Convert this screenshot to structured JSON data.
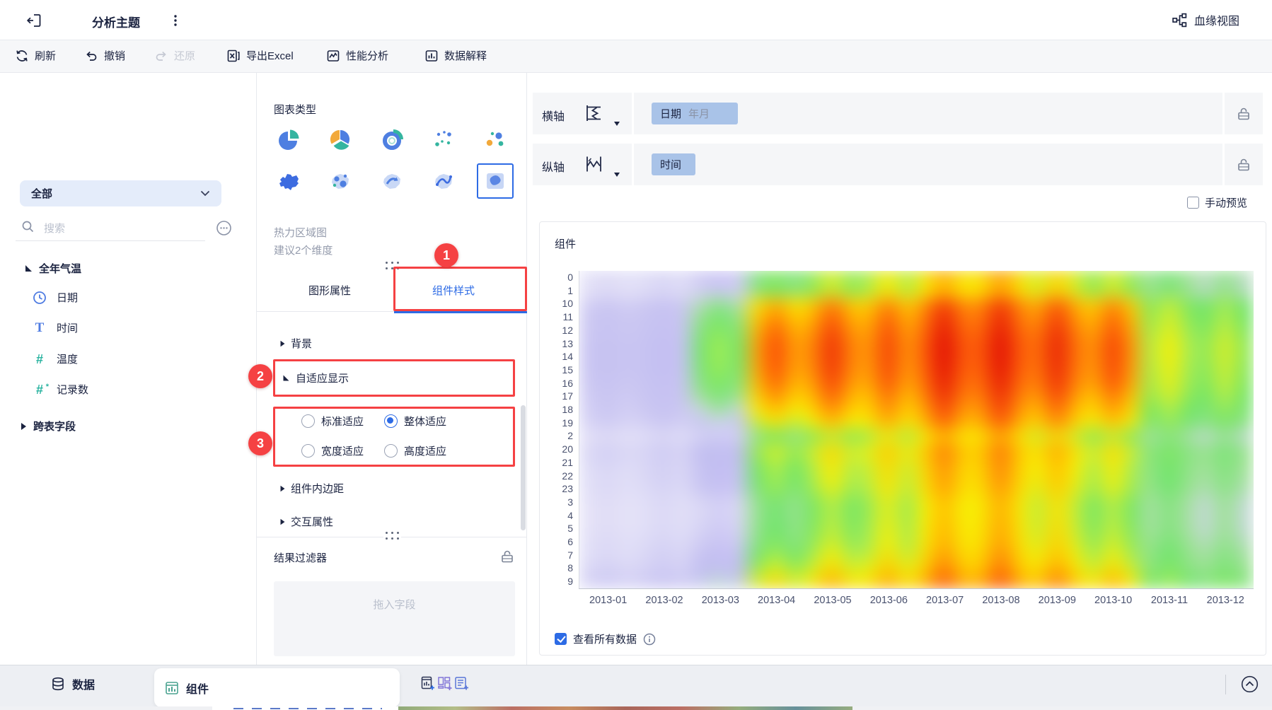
{
  "topbar": {
    "title": "分析主题",
    "lineage_label": "血缘视图"
  },
  "toolbar": {
    "refresh_label": "刷新",
    "undo_label": "撤销",
    "redo_label": "还原",
    "export_label": "导出Excel",
    "perf_label": "性能分析",
    "explain_label": "数据解释"
  },
  "sidebar": {
    "scope_label": "全部",
    "search_placeholder": "搜索",
    "dataset_label": "全年气温",
    "fields": [
      "日期",
      "时间",
      "温度",
      "记录数"
    ],
    "cross_table_label": "跨表字段"
  },
  "chart_panel": {
    "title": "图表类型",
    "chart_name": "热力区域图",
    "chart_hint": "建议2个维度",
    "tabs": {
      "graphic": "图形属性",
      "style": "组件样式"
    },
    "sections": {
      "background": "背景",
      "adaptive": "自适应显示",
      "padding": "组件内边距",
      "interaction": "交互属性"
    },
    "adaptive_options": [
      {
        "label": "标准适应",
        "selected": false
      },
      {
        "label": "整体适应",
        "selected": true
      },
      {
        "label": "宽度适应",
        "selected": false
      },
      {
        "label": "高度适应",
        "selected": false
      }
    ],
    "filter_title": "结果过滤器",
    "drop_hint": "拖入字段"
  },
  "axes": {
    "x_label": "横轴",
    "x_field": "日期",
    "x_field_sub": "年月",
    "y_label": "纵轴",
    "y_field": "时间"
  },
  "preview": {
    "manual_label": "手动预览",
    "card_title": "组件",
    "view_all_label": "查看所有数据"
  },
  "bottombar": {
    "data_label": "数据",
    "component_label": "组件"
  },
  "annotations": [
    "1",
    "2",
    "3"
  ],
  "colors": {
    "accent_blue": "#2d6be5",
    "annotation_red": "#f54143",
    "field_pill": "#a9c3e8",
    "teal": "#2ab3a0"
  },
  "chart_data": {
    "type": "heatmap",
    "title": "组件",
    "x": [
      "2013-01",
      "2013-02",
      "2013-03",
      "2013-04",
      "2013-05",
      "2013-06",
      "2013-07",
      "2013-08",
      "2013-09",
      "2013-10",
      "2013-11",
      "2013-12"
    ],
    "y": [
      "0",
      "1",
      "10",
      "11",
      "12",
      "13",
      "14",
      "15",
      "16",
      "17",
      "18",
      "19",
      "2",
      "20",
      "21",
      "22",
      "23",
      "3",
      "4",
      "5",
      "6",
      "7",
      "8",
      "9"
    ],
    "value_domain": [
      0,
      1
    ],
    "color_stops": [
      [
        0.0,
        "#ffffff"
      ],
      [
        0.08,
        "#e7e5f8"
      ],
      [
        0.15,
        "#cac6f2"
      ],
      [
        0.24,
        "#bebaf0"
      ],
      [
        0.31,
        "#d0d5ee"
      ],
      [
        0.37,
        "#a0e296"
      ],
      [
        0.46,
        "#6ee469"
      ],
      [
        0.54,
        "#b4ee4b"
      ],
      [
        0.62,
        "#f8ee05"
      ],
      [
        0.71,
        "#ffc400"
      ],
      [
        0.79,
        "#ff8a08"
      ],
      [
        0.88,
        "#fa4b0a"
      ],
      [
        1.0,
        "#e21005"
      ]
    ],
    "values": [
      [
        0.11,
        0.12,
        0.17,
        0.49,
        0.59,
        0.63,
        0.75,
        0.77,
        0.68,
        0.59,
        0.44,
        0.4
      ],
      [
        0.1,
        0.11,
        0.15,
        0.47,
        0.57,
        0.62,
        0.73,
        0.75,
        0.67,
        0.57,
        0.43,
        0.39
      ],
      [
        0.15,
        0.17,
        0.4,
        0.74,
        0.81,
        0.8,
        0.91,
        0.92,
        0.86,
        0.79,
        0.56,
        0.52
      ],
      [
        0.17,
        0.18,
        0.45,
        0.8,
        0.86,
        0.85,
        0.95,
        0.95,
        0.9,
        0.84,
        0.58,
        0.54
      ],
      [
        0.17,
        0.19,
        0.49,
        0.85,
        0.9,
        0.88,
        0.98,
        0.98,
        0.94,
        0.87,
        0.6,
        0.56
      ],
      [
        0.18,
        0.2,
        0.52,
        0.88,
        0.93,
        0.9,
        1.0,
        1.0,
        0.96,
        0.9,
        0.62,
        0.58
      ],
      [
        0.18,
        0.2,
        0.52,
        0.88,
        0.93,
        0.9,
        1.0,
        1.0,
        0.96,
        0.9,
        0.62,
        0.58
      ],
      [
        0.18,
        0.2,
        0.51,
        0.87,
        0.92,
        0.89,
        0.99,
        0.99,
        0.95,
        0.89,
        0.61,
        0.57
      ],
      [
        0.17,
        0.19,
        0.48,
        0.84,
        0.89,
        0.87,
        0.97,
        0.97,
        0.93,
        0.87,
        0.6,
        0.56
      ],
      [
        0.16,
        0.18,
        0.43,
        0.79,
        0.85,
        0.83,
        0.94,
        0.94,
        0.89,
        0.82,
        0.58,
        0.54
      ],
      [
        0.15,
        0.17,
        0.37,
        0.72,
        0.79,
        0.79,
        0.89,
        0.9,
        0.84,
        0.77,
        0.54,
        0.5
      ],
      [
        0.14,
        0.15,
        0.31,
        0.64,
        0.72,
        0.74,
        0.85,
        0.86,
        0.79,
        0.71,
        0.51,
        0.47
      ],
      [
        0.1,
        0.11,
        0.14,
        0.46,
        0.56,
        0.61,
        0.73,
        0.75,
        0.66,
        0.56,
        0.42,
        0.38
      ],
      [
        0.13,
        0.14,
        0.26,
        0.59,
        0.67,
        0.7,
        0.81,
        0.82,
        0.75,
        0.66,
        0.48,
        0.44
      ],
      [
        0.12,
        0.13,
        0.22,
        0.55,
        0.64,
        0.67,
        0.79,
        0.8,
        0.72,
        0.63,
        0.47,
        0.43
      ],
      [
        0.11,
        0.13,
        0.2,
        0.53,
        0.62,
        0.65,
        0.77,
        0.79,
        0.71,
        0.61,
        0.46,
        0.42
      ],
      [
        0.11,
        0.12,
        0.18,
        0.51,
        0.6,
        0.64,
        0.76,
        0.77,
        0.69,
        0.6,
        0.45,
        0.41
      ],
      [
        0.1,
        0.11,
        0.13,
        0.45,
        0.55,
        0.6,
        0.72,
        0.74,
        0.65,
        0.55,
        0.42,
        0.38
      ],
      [
        0.1,
        0.11,
        0.13,
        0.45,
        0.55,
        0.6,
        0.72,
        0.74,
        0.65,
        0.55,
        0.42,
        0.38
      ],
      [
        0.1,
        0.11,
        0.14,
        0.46,
        0.56,
        0.61,
        0.73,
        0.75,
        0.66,
        0.56,
        0.42,
        0.38
      ],
      [
        0.11,
        0.12,
        0.16,
        0.48,
        0.58,
        0.62,
        0.74,
        0.76,
        0.68,
        0.58,
        0.44,
        0.4
      ],
      [
        0.11,
        0.13,
        0.2,
        0.53,
        0.62,
        0.65,
        0.77,
        0.79,
        0.71,
        0.61,
        0.46,
        0.42
      ],
      [
        0.13,
        0.14,
        0.26,
        0.59,
        0.67,
        0.7,
        0.81,
        0.82,
        0.75,
        0.66,
        0.48,
        0.44
      ],
      [
        0.14,
        0.16,
        0.33,
        0.67,
        0.74,
        0.75,
        0.86,
        0.87,
        0.81,
        0.73,
        0.52,
        0.48
      ]
    ]
  }
}
